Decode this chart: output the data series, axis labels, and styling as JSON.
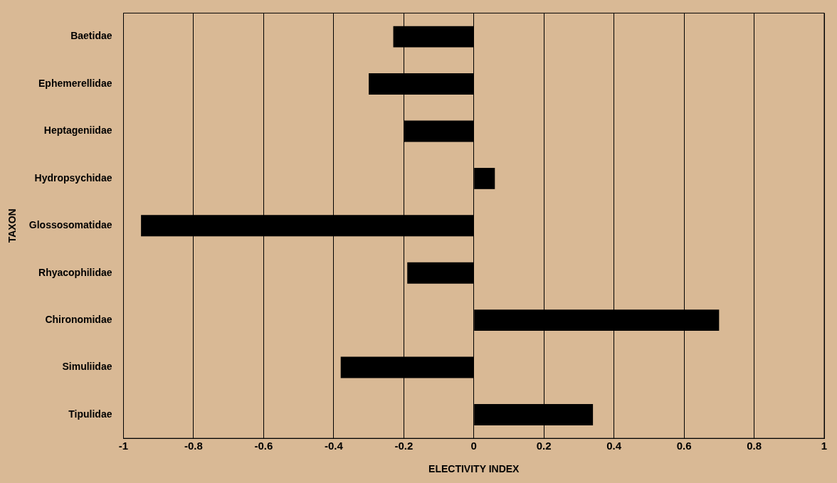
{
  "chart_data": {
    "type": "bar",
    "orientation": "horizontal",
    "xlabel": "ELECTIVITY INDEX",
    "ylabel": "TAXON",
    "categories": [
      "Baetidae",
      "Ephemerellidae",
      "Heptageniidae",
      "Hydropsychidae",
      "Glossosomatidae",
      "Rhyacophilidae",
      "Chironomidae",
      "Simuliidae",
      "Tipulidae"
    ],
    "values": [
      -0.23,
      -0.3,
      -0.2,
      0.06,
      -0.95,
      -0.19,
      0.7,
      -0.38,
      0.34
    ],
    "color": "#000000",
    "xlim": [
      -1,
      1
    ],
    "xticks": [
      -1,
      -0.8,
      -0.6,
      -0.4,
      -0.2,
      0,
      0.2,
      0.4,
      0.6,
      0.8,
      1
    ],
    "grid": "x",
    "legend": false
  }
}
